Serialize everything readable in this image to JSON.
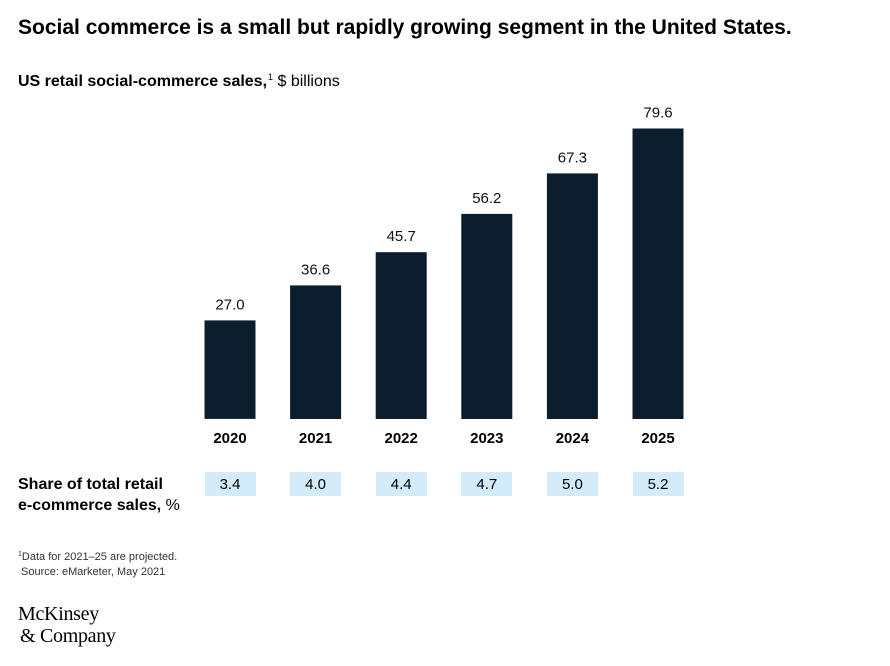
{
  "title": "Social commerce is a small but rapidly growing segment in the United States.",
  "subtitle": {
    "bold": "US retail social-commerce sales,",
    "footnote_mark": "1",
    "unit": " $ billions"
  },
  "chart_data": {
    "type": "bar",
    "title": "US retail social-commerce sales, $ billions",
    "categories": [
      "2020",
      "2021",
      "2022",
      "2023",
      "2024",
      "2025"
    ],
    "values": [
      27.0,
      36.6,
      45.7,
      56.2,
      67.3,
      79.6
    ],
    "value_labels": [
      "27.0",
      "36.6",
      "45.7",
      "56.2",
      "67.3",
      "79.6"
    ],
    "ylim": [
      0,
      80
    ],
    "xlabel": "",
    "ylabel": "",
    "bar_color": "#0c1e2e",
    "grid": false
  },
  "share": {
    "label_line1": "Share of total retail",
    "label_line2": "e-commerce sales,",
    "unit": "%",
    "values": [
      "3.4",
      "4.0",
      "4.4",
      "4.7",
      "5.0",
      "5.2"
    ]
  },
  "footnote": {
    "mark": "1",
    "text": "Data for 2021–25 are projected.",
    "source": "Source: eMarketer, May 2021"
  },
  "logo": {
    "line1": "McKinsey",
    "line2": "& Company"
  },
  "colors": {
    "bar": "#0c1e2e",
    "share_box": "#d3ecf9"
  }
}
